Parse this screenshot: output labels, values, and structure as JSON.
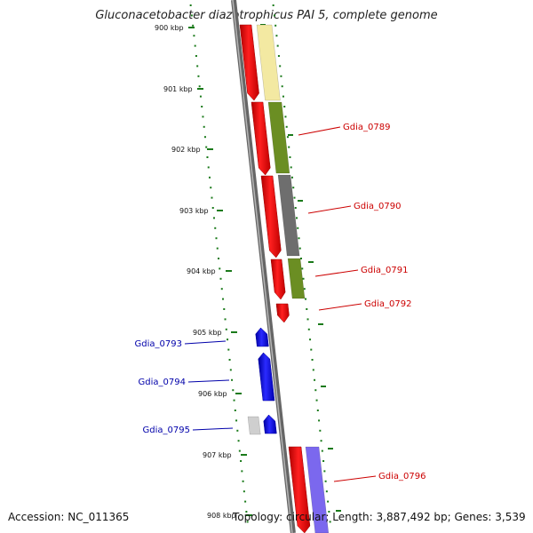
{
  "title": "Gluconacetobacter diazotrophicus PAI 5, complete genome",
  "accession": "Accession: NC_011365",
  "topology": "Topology: circular; Length: 3,887,492 bp; Genes: 3,539",
  "colors": {
    "backbone": "#808080",
    "plus_strand_gene": "#ff0000",
    "minus_strand_gene": "#0000ff",
    "plus_label": "#cc0000",
    "minus_label": "#0000aa",
    "gc_ticks": "#1a7a1a",
    "category_yellow": "#f3e9a2",
    "category_olive": "#6b8e23",
    "category_gray": "#6e6e6e",
    "category_lightgray": "#cfcfcf",
    "category_purple": "#7b68ee"
  },
  "kbp_ticks": [
    "900 kbp",
    "901 kbp",
    "902 kbp",
    "903 kbp",
    "904 kbp",
    "905 kbp",
    "906 kbp",
    "907 kbp",
    "908 kbp"
  ],
  "genes_plus": [
    {
      "name": "Gdia_0789"
    },
    {
      "name": "Gdia_0790"
    },
    {
      "name": "Gdia_0791"
    },
    {
      "name": "Gdia_0792"
    },
    {
      "name": "Gdia_0796"
    }
  ],
  "genes_minus": [
    {
      "name": "Gdia_0793"
    },
    {
      "name": "Gdia_0794"
    },
    {
      "name": "Gdia_0795"
    }
  ]
}
